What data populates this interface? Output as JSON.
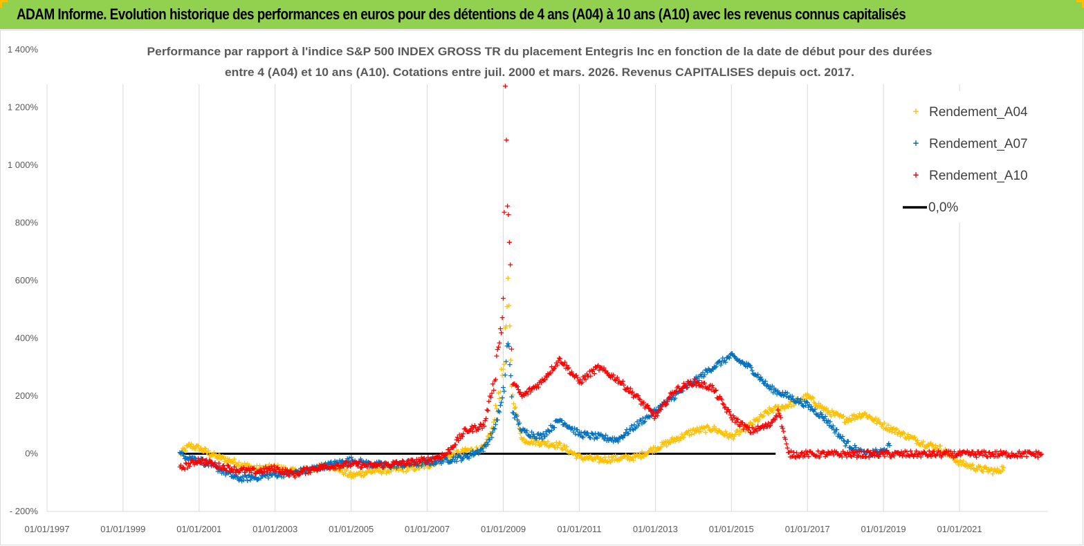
{
  "banner": {
    "title": "ADAM Informe. Evolution historique des performances en euros pour des détentions de 4 ans (A04) à 10 ans (A10) avec les revenus connus capitalisés",
    "color": "#92d050"
  },
  "chart_data": {
    "type": "scatter",
    "title_line1": "Performance par rapport à l'indice S&P 500 INDEX GROSS TR  du placement Entegris Inc en fonction de la date de début pour des durées",
    "title_line2": "entre 4 (A04) et 10 ans (A10). Cotations entre juil. 2000 et mars. 2026. Revenus CAPITALISES depuis oct. 2017.",
    "x_ticks": [
      "01/01/1997",
      "01/01/1999",
      "01/01/2001",
      "01/01/2003",
      "01/01/2005",
      "01/01/2007",
      "01/01/2009",
      "01/01/2011",
      "01/01/2013",
      "01/01/2015",
      "01/01/2017",
      "01/01/2019",
      "01/01/2021"
    ],
    "xlim": [
      "1997-01-01",
      "2023-05-01"
    ],
    "y_ticks": [
      "- 200%",
      "0%",
      "200%",
      "400%",
      "600%",
      "800%",
      "1 000%",
      "1 200%",
      "1 400%"
    ],
    "ylim": [
      -200,
      1400
    ],
    "legend_position": "top-right",
    "series": [
      {
        "name": "Rendement_A04",
        "color": "#ffc000",
        "points": [
          [
            "2000-07-01",
            0
          ],
          [
            "2000-10-01",
            30
          ],
          [
            "2001-01-01",
            20
          ],
          [
            "2001-07-01",
            -10
          ],
          [
            "2002-01-01",
            -30
          ],
          [
            "2002-07-01",
            -50
          ],
          [
            "2003-01-01",
            -45
          ],
          [
            "2003-07-01",
            -60
          ],
          [
            "2004-01-01",
            -50
          ],
          [
            "2004-07-01",
            -40
          ],
          [
            "2005-01-01",
            -75
          ],
          [
            "2005-07-01",
            -60
          ],
          [
            "2006-01-01",
            -55
          ],
          [
            "2006-07-01",
            -50
          ],
          [
            "2007-01-01",
            -40
          ],
          [
            "2007-07-01",
            -10
          ],
          [
            "2008-01-01",
            10
          ],
          [
            "2008-07-01",
            20
          ],
          [
            "2008-10-01",
            100
          ],
          [
            "2009-01-01",
            300
          ],
          [
            "2009-02-15",
            550
          ],
          [
            "2009-04-01",
            200
          ],
          [
            "2009-07-01",
            50
          ],
          [
            "2010-01-01",
            40
          ],
          [
            "2010-07-01",
            30
          ],
          [
            "2011-01-01",
            -10
          ],
          [
            "2011-07-01",
            -20
          ],
          [
            "2012-01-01",
            -15
          ],
          [
            "2012-07-01",
            -10
          ],
          [
            "2013-01-01",
            20
          ],
          [
            "2013-07-01",
            50
          ],
          [
            "2014-01-01",
            80
          ],
          [
            "2014-07-01",
            90
          ],
          [
            "2015-01-01",
            60
          ],
          [
            "2015-07-01",
            100
          ],
          [
            "2016-01-01",
            150
          ],
          [
            "2016-07-01",
            170
          ],
          [
            "2017-01-01",
            200
          ],
          [
            "2017-07-01",
            150
          ],
          [
            "2018-01-01",
            120
          ],
          [
            "2018-07-01",
            140
          ],
          [
            "2019-01-01",
            100
          ],
          [
            "2019-07-01",
            70
          ],
          [
            "2020-01-01",
            40
          ],
          [
            "2020-07-01",
            20
          ],
          [
            "2021-01-01",
            -30
          ],
          [
            "2021-07-01",
            -50
          ],
          [
            "2022-01-01",
            -60
          ],
          [
            "2022-03-01",
            -45
          ]
        ]
      },
      {
        "name": "Rendement_A07",
        "color": "#0070c0",
        "points": [
          [
            "2000-07-01",
            0
          ],
          [
            "2001-01-01",
            -20
          ],
          [
            "2001-07-01",
            -50
          ],
          [
            "2002-01-01",
            -85
          ],
          [
            "2002-07-01",
            -80
          ],
          [
            "2003-01-01",
            -70
          ],
          [
            "2003-07-01",
            -65
          ],
          [
            "2004-01-01",
            -50
          ],
          [
            "2004-07-01",
            -35
          ],
          [
            "2005-01-01",
            -20
          ],
          [
            "2005-07-01",
            -35
          ],
          [
            "2006-01-01",
            -40
          ],
          [
            "2006-07-01",
            -35
          ],
          [
            "2007-01-01",
            -30
          ],
          [
            "2007-07-01",
            -20
          ],
          [
            "2008-01-01",
            -10
          ],
          [
            "2008-07-01",
            20
          ],
          [
            "2008-10-01",
            80
          ],
          [
            "2009-01-01",
            200
          ],
          [
            "2009-02-15",
            400
          ],
          [
            "2009-04-01",
            150
          ],
          [
            "2009-07-01",
            80
          ],
          [
            "2010-01-01",
            60
          ],
          [
            "2010-07-01",
            120
          ],
          [
            "2011-01-01",
            70
          ],
          [
            "2011-07-01",
            60
          ],
          [
            "2012-01-01",
            50
          ],
          [
            "2012-07-01",
            100
          ],
          [
            "2013-01-01",
            150
          ],
          [
            "2013-07-01",
            200
          ],
          [
            "2014-01-01",
            250
          ],
          [
            "2014-07-01",
            300
          ],
          [
            "2015-01-01",
            340
          ],
          [
            "2015-07-01",
            300
          ],
          [
            "2016-01-01",
            230
          ],
          [
            "2016-07-01",
            200
          ],
          [
            "2017-01-01",
            170
          ],
          [
            "2017-07-01",
            120
          ],
          [
            "2018-01-01",
            40
          ],
          [
            "2018-07-01",
            0
          ],
          [
            "2019-01-01",
            10
          ],
          [
            "2019-03-01",
            30
          ]
        ]
      },
      {
        "name": "Rendement_A10",
        "color": "#ff0000",
        "points": [
          [
            "2000-07-01",
            -50
          ],
          [
            "2001-01-01",
            -20
          ],
          [
            "2001-07-01",
            -40
          ],
          [
            "2002-01-01",
            -55
          ],
          [
            "2002-07-01",
            -60
          ],
          [
            "2003-01-01",
            -50
          ],
          [
            "2003-07-01",
            -70
          ],
          [
            "2004-01-01",
            -50
          ],
          [
            "2004-07-01",
            -40
          ],
          [
            "2005-01-01",
            -35
          ],
          [
            "2005-07-01",
            -40
          ],
          [
            "2006-01-01",
            -35
          ],
          [
            "2006-07-01",
            -30
          ],
          [
            "2007-01-01",
            -20
          ],
          [
            "2007-07-01",
            0
          ],
          [
            "2008-01-01",
            80
          ],
          [
            "2008-07-01",
            100
          ],
          [
            "2008-10-01",
            250
          ],
          [
            "2009-01-01",
            500
          ],
          [
            "2009-01-20",
            1230
          ],
          [
            "2009-02-10",
            900
          ],
          [
            "2009-03-10",
            600
          ],
          [
            "2009-04-01",
            250
          ],
          [
            "2009-07-01",
            200
          ],
          [
            "2010-01-01",
            250
          ],
          [
            "2010-07-01",
            330
          ],
          [
            "2011-01-01",
            250
          ],
          [
            "2011-07-01",
            300
          ],
          [
            "2012-01-01",
            260
          ],
          [
            "2012-07-01",
            200
          ],
          [
            "2013-01-01",
            130
          ],
          [
            "2013-07-01",
            220
          ],
          [
            "2014-01-01",
            250
          ],
          [
            "2014-07-01",
            230
          ],
          [
            "2015-01-01",
            130
          ],
          [
            "2015-07-01",
            80
          ],
          [
            "2016-01-01",
            100
          ],
          [
            "2016-04-01",
            150
          ],
          [
            "2016-07-01",
            0
          ],
          [
            "2017-07-01",
            0
          ],
          [
            "2018-07-01",
            0
          ],
          [
            "2019-07-01",
            0
          ],
          [
            "2020-07-01",
            0
          ],
          [
            "2021-07-01",
            0
          ],
          [
            "2022-07-01",
            0
          ],
          [
            "2023-03-01",
            0
          ]
        ]
      },
      {
        "name": "0,0%",
        "color": "#000000",
        "type": "line",
        "points": [
          [
            "2000-07-01",
            0
          ],
          [
            "2016-03-01",
            0
          ]
        ]
      }
    ]
  }
}
